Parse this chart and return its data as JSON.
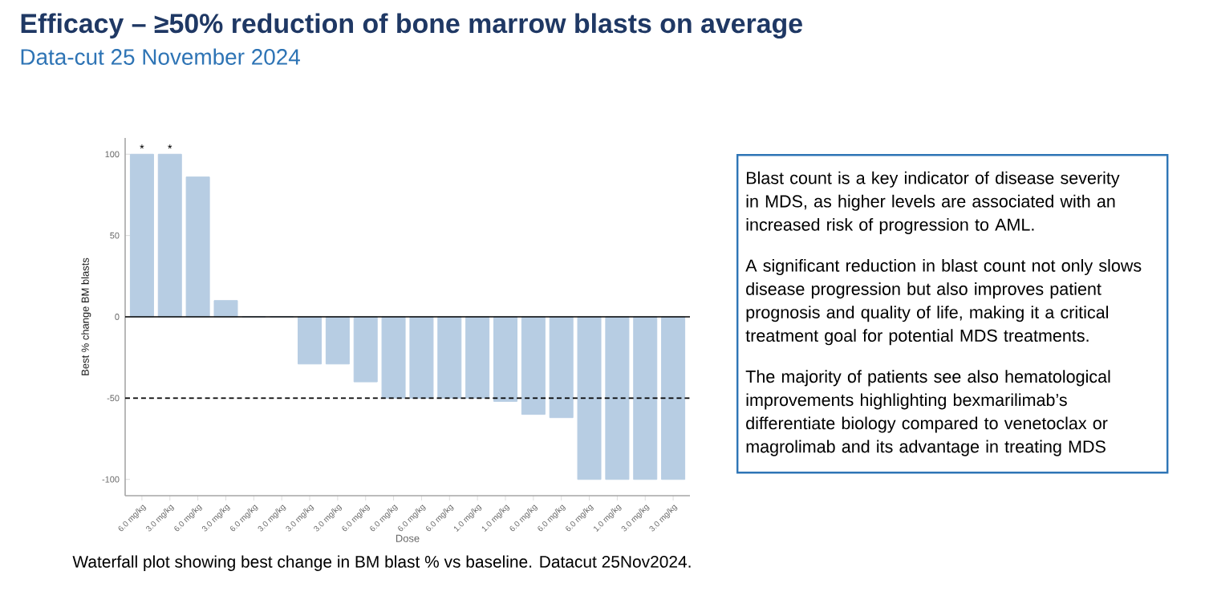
{
  "chart_data": [
    {
      "type": "bar",
      "title": "Efficacy – ≥50% reduction of bone marrow blasts on average",
      "subtitle": "Data-cut 25 November 2024",
      "xlabel": "Dose",
      "ylabel": "Best % change BM blasts",
      "categories": [
        "6.0 mg/kg",
        "3.0 mg/kg",
        "6.0 mg/kg",
        "3.0 mg/kg",
        "6.0 mg/kg",
        "3.0 mg/kg",
        "3.0 mg/kg",
        "3.0 mg/kg",
        "6.0 mg/kg",
        "6.0 mg/kg",
        "6.0 mg/kg",
        "6.0 mg/kg",
        "1.0 mg/kg",
        "1.0 mg/kg",
        "6.0 mg/kg",
        "6.0 mg/kg",
        "6.0 mg/kg",
        "1.0 mg/kg",
        "3.0 mg/kg",
        "3.0 mg/kg"
      ],
      "values": [
        100,
        100,
        86,
        10,
        0,
        0,
        -29,
        -29,
        -40,
        -50,
        -50,
        -50,
        -50,
        -52,
        -60,
        -62,
        -100,
        -100,
        -100,
        -100
      ],
      "value_labels": [
        "*",
        "*",
        null,
        null,
        null,
        null,
        null,
        null,
        null,
        null,
        null,
        null,
        null,
        null,
        null,
        null,
        null,
        null,
        null,
        null
      ],
      "color": "#b7cde3",
      "ylim": [
        -110,
        110
      ],
      "yticks": [
        -100,
        -50,
        0,
        50,
        100
      ],
      "ref_lines": [
        {
          "axis": "y",
          "value": 0,
          "line_style": "solid",
          "color": "#000000"
        },
        {
          "axis": "y",
          "value": -50,
          "line_style": "dashed",
          "color": "#000000"
        }
      ],
      "annotations": [
        "Waterfall plot showing best change in BM blast % vs baseline. Datacut 25Nov2024."
      ]
    },
    {
      "type": "other",
      "annotations": [
        "Blast count is a key indicator of disease severity in MDS, as higher levels are associated with an increased risk of progression to AML.",
        "A significant reduction in blast count not only slows disease progression but also improves patient prognosis and quality of life, making it a critical treatment goal for potential MDS treatments.",
        "The majority of patients see also hematological improvements highlighting bexmarilimab’s differentiate biology compared to venetoclax or magrolimab and its advantage in treating MDS"
      ]
    }
  ]
}
